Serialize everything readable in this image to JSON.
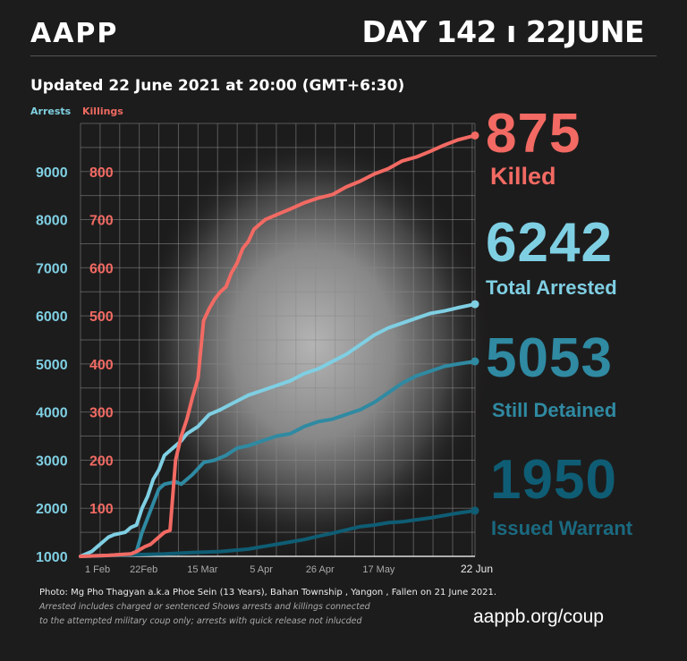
{
  "header": {
    "logo": "AAPP",
    "day_label": "DAY 142",
    "separator": "ı",
    "date_label": "22JUNE",
    "updated": "Updated 22 June 2021 at 20:00 (GMT+6:30)"
  },
  "legend": {
    "arrests": "Arrests",
    "killings": "Killings"
  },
  "stats": {
    "killed_value": "875",
    "killed_label": "Killed",
    "arrested_value": "6242",
    "arrested_label": "Total Arrested",
    "detained_value": "5053",
    "detained_label": "Still Detained",
    "warrant_value": "1950",
    "warrant_label": "Issued Warrant"
  },
  "footer": {
    "photo_credit": "Photo: Mg Pho Thagyan  a.k.a Phoe Sein (13 Years), Bahan Township , Yangon , Fallen on 21 June 2021.",
    "note_line1": "Arrested includes charged or sentenced Shows arrests and killings connected",
    "note_line2": "to the attempted military coup only; arrests with quick release not inlucded",
    "url": "aappb.org/coup"
  },
  "colors": {
    "killings": "#f26a63",
    "arrests": "#7fcfe3",
    "detained": "#2f8aa2",
    "warrant": "#0e5d74",
    "background": "#1d1c1c"
  },
  "chart_data": {
    "type": "line",
    "x_start": "1 Feb",
    "x_ticks": [
      "1 Feb",
      "22Feb",
      "15 Mar",
      "5 Apr",
      "26 Apr",
      "17 May",
      "22 Jun"
    ],
    "x_tick_days": [
      0,
      21,
      42,
      63,
      84,
      105,
      141
    ],
    "xlim": [
      0,
      141
    ],
    "left_axis": {
      "label": "Arrests",
      "ticks": [
        1000,
        2000,
        3000,
        4000,
        5000,
        6000,
        7000,
        8000,
        9000
      ],
      "ylim": [
        1000,
        10000
      ]
    },
    "right_axis": {
      "label": "Killings",
      "ticks": [
        100,
        200,
        300,
        400,
        500,
        600,
        700,
        800
      ],
      "ylim": [
        0,
        900
      ]
    },
    "grid": true,
    "series": [
      {
        "name": "Killings",
        "axis": "right",
        "x": [
          0,
          10,
          18,
          20,
          23,
          25,
          28,
          30,
          32,
          34,
          36,
          38,
          40,
          42,
          44,
          46,
          48,
          50,
          52,
          54,
          56,
          58,
          60,
          62,
          64,
          66,
          70,
          75,
          80,
          85,
          90,
          95,
          100,
          105,
          110,
          115,
          120,
          125,
          130,
          135,
          141
        ],
        "y": [
          0,
          2,
          5,
          10,
          20,
          25,
          40,
          50,
          54,
          200,
          250,
          285,
          330,
          370,
          490,
          515,
          535,
          550,
          560,
          590,
          610,
          640,
          655,
          680,
          690,
          700,
          710,
          722,
          735,
          745,
          752,
          768,
          780,
          795,
          806,
          822,
          830,
          842,
          855,
          866,
          875
        ]
      },
      {
        "name": "Total Arrested",
        "axis": "left",
        "x": [
          0,
          4,
          6,
          8,
          10,
          12,
          16,
          18,
          20,
          22,
          24,
          26,
          28,
          30,
          34,
          36,
          38,
          42,
          46,
          50,
          55,
          60,
          65,
          70,
          75,
          80,
          85,
          90,
          95,
          100,
          105,
          110,
          115,
          120,
          125,
          130,
          135,
          141
        ],
        "y": [
          1000,
          1100,
          1200,
          1300,
          1400,
          1450,
          1500,
          1600,
          1650,
          2000,
          2250,
          2600,
          2800,
          3100,
          3300,
          3400,
          3550,
          3700,
          3950,
          4050,
          4200,
          4350,
          4450,
          4550,
          4650,
          4800,
          4900,
          5050,
          5200,
          5400,
          5600,
          5750,
          5850,
          5950,
          6050,
          6100,
          6170,
          6242
        ]
      },
      {
        "name": "Still Detained",
        "axis": "left",
        "x": [
          0,
          10,
          18,
          20,
          22,
          24,
          26,
          28,
          30,
          34,
          36,
          40,
          44,
          48,
          52,
          56,
          60,
          65,
          70,
          75,
          80,
          85,
          90,
          95,
          100,
          105,
          110,
          115,
          120,
          125,
          130,
          135,
          141
        ],
        "y": [
          1000,
          1020,
          1050,
          1100,
          1500,
          1800,
          2100,
          2400,
          2500,
          2550,
          2500,
          2700,
          2950,
          3000,
          3100,
          3250,
          3300,
          3400,
          3500,
          3550,
          3700,
          3800,
          3850,
          3950,
          4050,
          4200,
          4400,
          4600,
          4750,
          4850,
          4950,
          5000,
          5053
        ]
      },
      {
        "name": "Issued Warrant",
        "axis": "left",
        "x": [
          0,
          30,
          40,
          50,
          60,
          65,
          70,
          75,
          80,
          85,
          90,
          95,
          100,
          105,
          110,
          115,
          120,
          125,
          130,
          135,
          141
        ],
        "y": [
          1000,
          1050,
          1080,
          1100,
          1150,
          1200,
          1250,
          1300,
          1350,
          1420,
          1480,
          1550,
          1620,
          1650,
          1700,
          1720,
          1760,
          1800,
          1850,
          1900,
          1950
        ]
      }
    ]
  }
}
